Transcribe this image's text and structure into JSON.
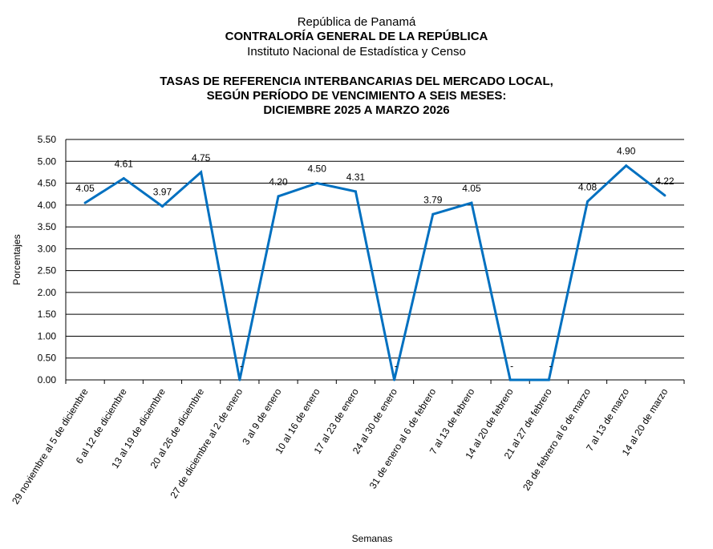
{
  "header": {
    "line1": "República de Panamá",
    "line2": "CONTRALORÍA GENERAL DE LA REPÚBLICA",
    "line3": "Instituto  Nacional de Estadística y Censo"
  },
  "chart_data": {
    "type": "line",
    "title": [
      "TASAS DE REFERENCIA INTERBANCARIAS DEL MERCADO LOCAL,",
      "SEGÚN PERÍODO DE VENCIMIENTO A SEIS MESES:",
      "DICIEMBRE 2025 A MARZO 2026"
    ],
    "xlabel": "Semanas",
    "ylabel": "Porcentajes",
    "ylim": [
      0,
      5.5
    ],
    "yticks": [
      "0.00",
      "0.50",
      "1.00",
      "1.50",
      "2.00",
      "2.50",
      "3.00",
      "3.50",
      "4.00",
      "4.50",
      "5.00",
      "5.50"
    ],
    "categories": [
      "29 noviembre al 5 de diciembre",
      "6 al 12 de diciembre",
      "13 al 19 de diciembre",
      "20 al 26 de diciembre",
      "27 de diciembre al 2 de enero",
      "3 al 9 de enero",
      "10 al 16 de enero",
      "17 al 23 de enero",
      "24 al 30 de enero",
      "31 de enero al 6 de febrero",
      "7 al 13 de febrero",
      "14 al 20 de febrero",
      "21 al 27 de febrero",
      "28 de febrero al 6 de marzo",
      "7 al 13 de marzo",
      "14 al 20 de marzo"
    ],
    "values": [
      4.05,
      4.61,
      3.97,
      4.75,
      0,
      4.2,
      4.5,
      4.31,
      0,
      3.79,
      4.05,
      0,
      0,
      4.08,
      4.9,
      4.22
    ],
    "data_labels": [
      "4.05",
      "4.61",
      "3.97",
      "4.75",
      "-",
      "4.20",
      "4.50",
      "4.31",
      "-",
      "3.79",
      "4.05",
      "-",
      "-",
      "4.08",
      "4.90",
      "4.22"
    ],
    "line_color": "#0070C0",
    "grid": true
  }
}
